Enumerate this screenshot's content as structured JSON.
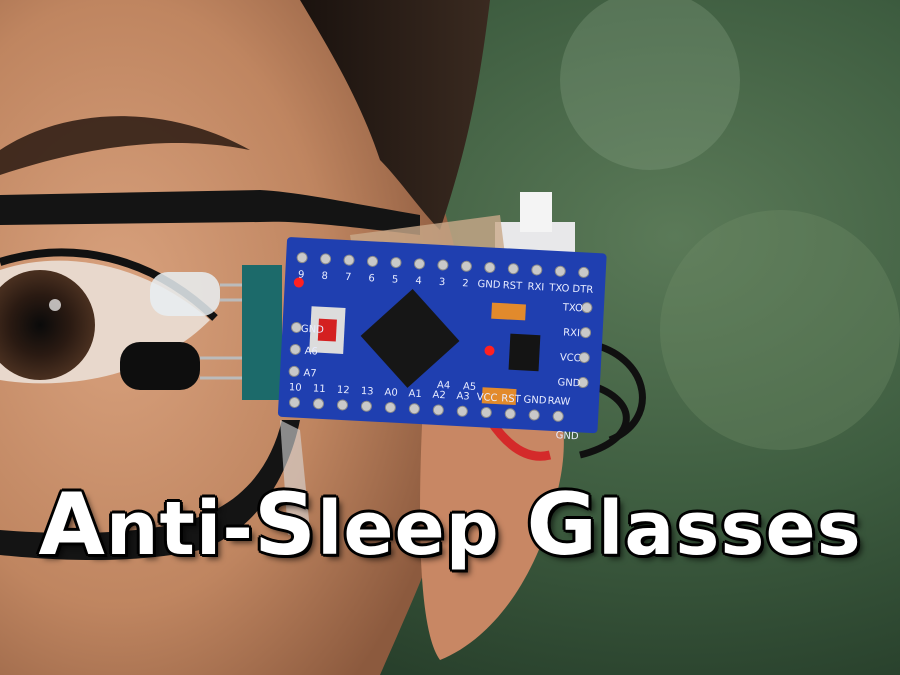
{
  "title": {
    "text": "Anti-Sleep Glasses",
    "part1_cap": "A",
    "part1_rest": "nti-",
    "part2_cap": "S",
    "part2_rest": "leep ",
    "part3_cap": "G",
    "part3_rest": "lasses"
  },
  "board": {
    "top_pins": [
      "9",
      "8",
      "7",
      "6",
      "5",
      "4",
      "3",
      "2",
      "GND",
      "RST",
      "RXI",
      "TXO",
      "DTR"
    ],
    "bottom_pins": [
      "10",
      "11",
      "12",
      "13",
      "A0",
      "A1",
      "A2",
      "A3",
      "VCC",
      "RST",
      "GND",
      "RAW"
    ],
    "right_pins": [
      "TXO",
      "RXI",
      "VCC",
      "GND"
    ],
    "left_pins": [
      "GND",
      "A6",
      "A7"
    ],
    "extra_labels": [
      "A4",
      "A5",
      "GND"
    ]
  },
  "colors": {
    "pcb": "#1f3fb0",
    "background": "#3e5d40",
    "skin": "#c98f6b",
    "frame": "#141414",
    "led": "#ff2020"
  }
}
